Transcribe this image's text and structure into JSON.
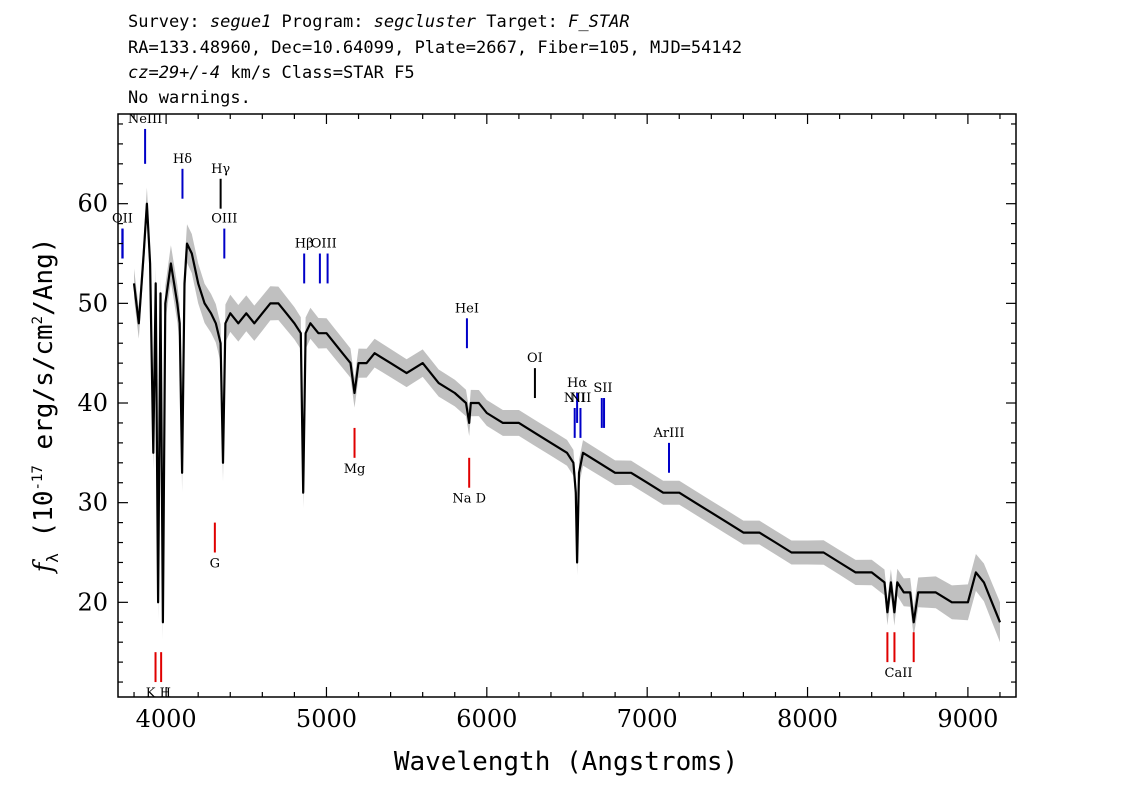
{
  "header": {
    "survey_label": "Survey: ",
    "survey": "segue1",
    "program_label": " Program: ",
    "program": "segcluster",
    "target_label": " Target: ",
    "target": "F_STAR",
    "line2": "RA=133.48960, Dec=10.64099, Plate=2667, Fiber=105, MJD=54142",
    "cz": "cz=29+/-4",
    "line3_rest": " km/s Class=STAR F5",
    "line4": "No warnings."
  },
  "chart_data": {
    "type": "line",
    "xlabel": "Wavelength (Angstroms)",
    "ylabel_prefix": "f",
    "ylabel_sub": "λ",
    "ylabel_rest": " (10",
    "ylabel_exp": "-17",
    "ylabel_tail": " erg/s/cm",
    "ylabel_exp2": "2",
    "ylabel_end": "/Ang)",
    "xlim": [
      3700,
      9300
    ],
    "ylim": [
      10.5,
      69
    ],
    "xticks": [
      4000,
      5000,
      6000,
      7000,
      8000,
      9000
    ],
    "xtick_labels": [
      "4000",
      "5000",
      "6000",
      "7000",
      "8000",
      "9000"
    ],
    "yticks": [
      20,
      30,
      40,
      50,
      60
    ],
    "ytick_labels": [
      "20",
      "30",
      "40",
      "50",
      "60"
    ],
    "grid": false,
    "series": [
      {
        "role": "flux",
        "color": "#000000",
        "x": [
          3800,
          3830,
          3860,
          3880,
          3900,
          3920,
          3935,
          3950,
          3965,
          3980,
          3995,
          4030,
          4070,
          4085,
          4100,
          4115,
          4130,
          4160,
          4200,
          4240,
          4280,
          4310,
          4340,
          4355,
          4370,
          4400,
          4450,
          4500,
          4550,
          4600,
          4650,
          4700,
          4750,
          4800,
          4840,
          4855,
          4870,
          4900,
          4950,
          5000,
          5050,
          5100,
          5150,
          5175,
          5200,
          5250,
          5300,
          5400,
          5500,
          5600,
          5700,
          5800,
          5870,
          5890,
          5900,
          5950,
          6000,
          6100,
          6200,
          6300,
          6400,
          6500,
          6540,
          6555,
          6563,
          6575,
          6600,
          6700,
          6800,
          6900,
          7000,
          7100,
          7200,
          7300,
          7400,
          7500,
          7600,
          7700,
          7800,
          7900,
          8000,
          8100,
          8200,
          8300,
          8400,
          8480,
          8498,
          8520,
          8542,
          8560,
          8600,
          8640,
          8662,
          8690,
          8750,
          8800,
          8900,
          9000,
          9050,
          9100,
          9150,
          9200
        ],
        "y": [
          52,
          48,
          55,
          60,
          54,
          35,
          52,
          20,
          51,
          18,
          50,
          54,
          50,
          48,
          33,
          52,
          56,
          55,
          52,
          50,
          49,
          48,
          46,
          34,
          48,
          49,
          48,
          49,
          48,
          49,
          50,
          50,
          49,
          48,
          47,
          31,
          47,
          48,
          47,
          47,
          46,
          45,
          44,
          41,
          44,
          44,
          45,
          44,
          43,
          44,
          42,
          41,
          40,
          38,
          40,
          40,
          39,
          38,
          38,
          37,
          36,
          35,
          34,
          31,
          24,
          33,
          35,
          34,
          33,
          33,
          32,
          31,
          31,
          30,
          29,
          28,
          27,
          27,
          26,
          25,
          25,
          25,
          24,
          23,
          23,
          22,
          19,
          22,
          19,
          22,
          21,
          21,
          18,
          21,
          21,
          21,
          20,
          20,
          23,
          22,
          20,
          18
        ]
      },
      {
        "role": "error",
        "color": "#c0c0c0",
        "x": [
          3800,
          4000,
          4200,
          4500,
          5000,
          5500,
          6000,
          6500,
          7000,
          7500,
          8000,
          8500,
          9000,
          9200
        ],
        "y": [
          1.5,
          1.8,
          2.0,
          1.8,
          1.5,
          1.4,
          1.3,
          1.3,
          1.2,
          1.2,
          1.2,
          1.3,
          1.8,
          2.0
        ]
      }
    ],
    "emission_lines": [
      {
        "label": "NeIII",
        "x": [
          3869
        ],
        "y_top": 67.5,
        "y_bottom": 64.0,
        "color": "#0000c8"
      },
      {
        "label": "Hδ",
        "x": [
          4102
        ],
        "y_top": 63.5,
        "y_bottom": 60.5,
        "color": "#0000c8"
      },
      {
        "label": "Hγ",
        "x": [
          4340
        ],
        "y_top": 62.5,
        "y_bottom": 59.5,
        "color": "#000000"
      },
      {
        "label": "OIII",
        "x": [
          4363
        ],
        "y_top": 57.5,
        "y_bottom": 54.5,
        "color": "#0000c8"
      },
      {
        "label": "OII",
        "x": [
          3727,
          3729
        ],
        "y_top": 57.5,
        "y_bottom": 54.5,
        "color": "#0000c8"
      },
      {
        "label": "Hβ",
        "x": [
          4861
        ],
        "y_top": 55.0,
        "y_bottom": 52.0,
        "color": "#0000c8"
      },
      {
        "label": "OIII",
        "x": [
          4959,
          5007
        ],
        "y_top": 55.0,
        "y_bottom": 52.0,
        "color": "#0000c8"
      },
      {
        "label": "HeI",
        "x": [
          5876
        ],
        "y_top": 48.5,
        "y_bottom": 45.5,
        "color": "#0000c8"
      },
      {
        "label": "OI",
        "x": [
          6300
        ],
        "y_top": 43.5,
        "y_bottom": 40.5,
        "color": "#000000"
      },
      {
        "label": "NII",
        "x": [
          6548
        ],
        "y_top": 39.5,
        "y_bottom": 36.5,
        "color": "#0000c8"
      },
      {
        "label": "Hα",
        "x": [
          6563
        ],
        "y_top": 41.0,
        "y_bottom": 38.0,
        "color": "#0000c8"
      },
      {
        "label": "NII",
        "x": [
          6584
        ],
        "y_top": 39.5,
        "y_bottom": 36.5,
        "color": "#0000c8"
      },
      {
        "label": "SII",
        "x": [
          6717,
          6731
        ],
        "y_top": 40.5,
        "y_bottom": 37.5,
        "color": "#0000c8"
      },
      {
        "label": "ArIII",
        "x": [
          7136
        ],
        "y_top": 36.0,
        "y_bottom": 33.0,
        "color": "#0000c8"
      }
    ],
    "absorption_lines": [
      {
        "label": "K H",
        "x": [
          3934,
          3969
        ],
        "y_top": 15.0,
        "y_bottom": 12.0,
        "color": "#e00000"
      },
      {
        "label": "G",
        "x": [
          4304
        ],
        "y_top": 28.0,
        "y_bottom": 25.0,
        "color": "#e00000"
      },
      {
        "label": "Mg",
        "x": [
          5175
        ],
        "y_top": 37.5,
        "y_bottom": 34.5,
        "color": "#e00000"
      },
      {
        "label": "Na  D",
        "x": [
          5890
        ],
        "y_top": 34.5,
        "y_bottom": 31.5,
        "color": "#e00000"
      },
      {
        "label": "CaII",
        "x": [
          8498,
          8542,
          8662
        ],
        "y_top": 17.0,
        "y_bottom": 14.0,
        "color": "#e00000"
      }
    ]
  }
}
